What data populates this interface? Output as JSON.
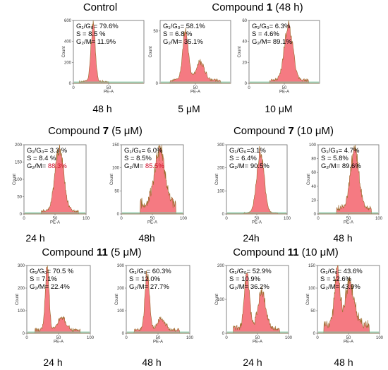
{
  "titles": {
    "control": "Control",
    "c1_48h": {
      "prefix": "Compound ",
      "bold": "1",
      "suffix": " (48 h)"
    },
    "c7_5": {
      "prefix": "Compound ",
      "bold": "7",
      "suffix": " (5 μM)"
    },
    "c7_10": {
      "prefix": "Compound ",
      "bold": "7",
      "suffix": " (10 μM)"
    },
    "c11_5": {
      "prefix": "Compound ",
      "bold": "11",
      "suffix": " (5 μM)"
    },
    "c11_10": {
      "prefix": "Compound ",
      "bold": "11",
      "suffix": " (10 μM)"
    }
  },
  "axis": {
    "xlabel": "PE-A",
    "ylabel": "Count"
  },
  "colors": {
    "fill": "#f4737b",
    "peak_outline": "#9a6a2a",
    "green_band": "#7fc4a2",
    "border": "#666666",
    "highlight": "#d0102b"
  },
  "chart_data": [
    {
      "type": "area",
      "id": "control",
      "caption": "48 h",
      "xlim": [
        0,
        100
      ],
      "xticks": [
        0,
        50
      ],
      "ylim": [
        0,
        600
      ],
      "yticks": [
        0,
        200,
        400,
        600
      ],
      "stats": [
        {
          "label": "G₁/G₀= ",
          "value": "79.6%"
        },
        {
          "label": "S = ",
          "value": "8.5 %"
        },
        {
          "label": "G₂/M= ",
          "value": "11.9%"
        }
      ],
      "peaks": [
        {
          "x": 28,
          "h": 560,
          "w": 3
        }
      ],
      "bg": 18
    },
    {
      "type": "area",
      "id": "c1_5uM",
      "caption": "5 μM",
      "xlim": [
        0,
        100
      ],
      "xticks": [
        50
      ],
      "ylim": [
        0,
        60
      ],
      "yticks": [
        0,
        50
      ],
      "stats": [
        {
          "label": "G₁/G₀= ",
          "value": "58.1%"
        },
        {
          "label": "S = ",
          "value": "6.8 %"
        },
        {
          "label": "G₂/M= ",
          "value": "35.1%"
        }
      ],
      "peaks": [
        {
          "x": 36,
          "h": 48,
          "w": 4
        },
        {
          "x": 57,
          "h": 17,
          "w": 6
        }
      ],
      "bg": 3
    },
    {
      "type": "area",
      "id": "c1_10uM",
      "caption": "10 μM",
      "xlim": [
        0,
        100
      ],
      "xticks": [
        0,
        50
      ],
      "ylim": [
        0,
        60
      ],
      "yticks": [
        0,
        20,
        40,
        60
      ],
      "stats": [
        {
          "label": "G₁/G₀= ",
          "value": "6.3%"
        },
        {
          "label": "S = ",
          "value": "4.6%"
        },
        {
          "label": "G₂/M= ",
          "value": "89.1%"
        }
      ],
      "peaks": [
        {
          "x": 56,
          "h": 52,
          "w": 6
        }
      ],
      "bg": 3
    },
    {
      "type": "area",
      "id": "c7_5uM_24h",
      "caption": "24 h",
      "xlim": [
        0,
        100
      ],
      "xticks": [
        0,
        50,
        100
      ],
      "ylim": [
        0,
        200
      ],
      "yticks": [
        0,
        50,
        100,
        150,
        200
      ],
      "stats": [
        {
          "label": "G₁/G₀= ",
          "value": "3.3 %"
        },
        {
          "label": "S = ",
          "value": "8.4 %"
        },
        {
          "label": "G₂/M= ",
          "value": "88.3%",
          "red": true
        }
      ],
      "peaks": [
        {
          "x": 57,
          "h": 180,
          "w": 7
        }
      ],
      "bg": 8
    },
    {
      "type": "area",
      "id": "c7_5uM_48h",
      "caption": "48h",
      "xlim": [
        0,
        100
      ],
      "xticks": [
        0,
        50,
        100
      ],
      "ylim": [
        0,
        150
      ],
      "yticks": [
        0,
        50,
        100,
        150
      ],
      "stats": [
        {
          "label": "G₁/G₀= ",
          "value": "6.0%"
        },
        {
          "label": "S = ",
          "value": "8.5%"
        },
        {
          "label": "G₂/M= ",
          "value": "85.5%",
          "red": true
        }
      ],
      "peaks": [
        {
          "x": 62,
          "h": 120,
          "w": 8
        }
      ],
      "bg": 22
    },
    {
      "type": "area",
      "id": "c7_10uM_24h",
      "caption": "24h",
      "xlim": [
        0,
        100
      ],
      "xticks": [
        0,
        50,
        100
      ],
      "ylim": [
        0,
        300
      ],
      "yticks": [
        0,
        100,
        200,
        300
      ],
      "stats": [
        {
          "label": "G₁/G₀=",
          "value": "3.1%"
        },
        {
          "label": "S = ",
          "value": "6.4%"
        },
        {
          "label": "G₂/M= ",
          "value": "90.5%"
        }
      ],
      "peaks": [
        {
          "x": 56,
          "h": 270,
          "w": 6
        }
      ],
      "bg": 5
    },
    {
      "type": "area",
      "id": "c7_10uM_48h",
      "caption": "48 h",
      "xlim": [
        0,
        100
      ],
      "xticks": [
        0,
        50,
        100
      ],
      "ylim": [
        0,
        100
      ],
      "yticks": [
        0,
        20,
        40,
        60,
        80,
        100
      ],
      "stats": [
        {
          "label": "G₁/G₀= ",
          "value": "4.7%"
        },
        {
          "label": "S = ",
          "value": "5.8%"
        },
        {
          "label": "G₂/M= ",
          "value": "89.6%"
        }
      ],
      "peaks": [
        {
          "x": 60,
          "h": 85,
          "w": 7
        }
      ],
      "bg": 8
    },
    {
      "type": "area",
      "id": "c11_5uM_24h",
      "caption": "24 h",
      "xlim": [
        0,
        100
      ],
      "xticks": [
        0,
        50,
        100
      ],
      "ylim": [
        0,
        300
      ],
      "yticks": [
        0,
        100,
        200,
        300
      ],
      "stats": [
        {
          "label": "G₁/G₀= ",
          "value": "70.5 %"
        },
        {
          "label": "S = ",
          "value": "7.1%"
        },
        {
          "label": "G₂/M= ",
          "value": "22.4%"
        }
      ],
      "peaks": [
        {
          "x": 32,
          "h": 280,
          "w": 3
        },
        {
          "x": 55,
          "h": 55,
          "w": 6
        }
      ],
      "bg": 15
    },
    {
      "type": "area",
      "id": "c11_5uM_48h",
      "caption": "48 h",
      "xlim": [
        0,
        100
      ],
      "xticks": [
        0,
        50,
        100
      ],
      "ylim": [
        0,
        300
      ],
      "yticks": [
        0,
        100,
        200,
        300
      ],
      "stats": [
        {
          "label": "G₁/G₀= ",
          "value": "60.3%"
        },
        {
          "label": "S = ",
          "value": "12.0%"
        },
        {
          "label": "G₂/M= ",
          "value": "27.7%"
        }
      ],
      "peaks": [
        {
          "x": 33,
          "h": 250,
          "w": 3.5
        },
        {
          "x": 55,
          "h": 50,
          "w": 6
        }
      ],
      "bg": 15
    },
    {
      "type": "area",
      "id": "c11_10uM_24h",
      "caption": "24 h",
      "xlim": [
        0,
        100
      ],
      "xticks": [
        0,
        50,
        100
      ],
      "ylim": [
        0,
        200
      ],
      "yticks": [
        0,
        100,
        200
      ],
      "stats": [
        {
          "label": "G₁/G₀= ",
          "value": "52.9%"
        },
        {
          "label": "S = ",
          "value": "10.9%"
        },
        {
          "label": "G₂/M= ",
          "value": "36.2%"
        }
      ],
      "peaks": [
        {
          "x": 33,
          "h": 170,
          "w": 4
        },
        {
          "x": 57,
          "h": 110,
          "w": 6
        }
      ],
      "bg": 15
    },
    {
      "type": "area",
      "id": "c11_10uM_48h",
      "caption": "48 h",
      "xlim": [
        0,
        100
      ],
      "xticks": [
        0,
        50,
        100
      ],
      "ylim": [
        0,
        150
      ],
      "yticks": [
        0,
        50,
        100,
        150
      ],
      "stats": [
        {
          "label": "G₁/G₀= ",
          "value": "43.6%"
        },
        {
          "label": "S = ",
          "value": "12.6%"
        },
        {
          "label": "G₂/M= ",
          "value": "43.9%"
        }
      ],
      "peaks": [
        {
          "x": 32,
          "h": 120,
          "w": 4
        },
        {
          "x": 52,
          "h": 95,
          "w": 7
        }
      ],
      "bg": 20
    }
  ]
}
